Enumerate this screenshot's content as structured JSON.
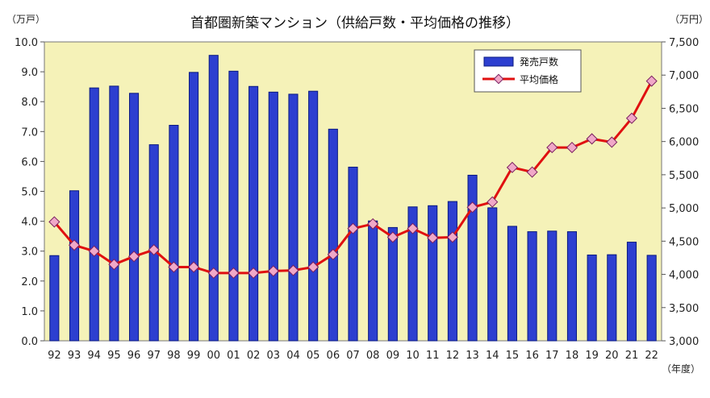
{
  "chart_data": {
    "type": "bar+line",
    "title": "首都圏新築マンション（供給戸数・平均価格の推移）",
    "left_unit": "（万戸）",
    "right_unit": "（万円）",
    "x_unit": "（年度）",
    "categories": [
      "92",
      "93",
      "94",
      "95",
      "96",
      "97",
      "98",
      "99",
      "00",
      "01",
      "02",
      "03",
      "04",
      "05",
      "06",
      "07",
      "08",
      "09",
      "10",
      "11",
      "12",
      "13",
      "14",
      "15",
      "16",
      "17",
      "18",
      "19",
      "20",
      "21",
      "22"
    ],
    "left_axis": {
      "min": 0,
      "max": 10,
      "step": 1,
      "tick_labels": [
        "0.0",
        "1.0",
        "2.0",
        "3.0",
        "4.0",
        "5.0",
        "6.0",
        "7.0",
        "8.0",
        "9.0",
        "10.0"
      ]
    },
    "right_axis": {
      "min": 3000,
      "max": 7500,
      "step": 500,
      "tick_labels": [
        "3,000",
        "3,500",
        "4,000",
        "4,500",
        "5,000",
        "5,500",
        "6,000",
        "6,500",
        "7,000",
        "7,500"
      ]
    },
    "series": [
      {
        "name": "発売戸数",
        "type": "bar",
        "axis": "left",
        "color": "#2d3fd0",
        "values": [
          2.85,
          5.02,
          8.46,
          8.52,
          8.28,
          6.56,
          7.21,
          8.98,
          9.55,
          9.02,
          8.51,
          8.32,
          8.25,
          8.35,
          7.08,
          5.81,
          4.01,
          3.79,
          4.48,
          4.52,
          4.66,
          5.54,
          4.45,
          3.83,
          3.65,
          3.67,
          3.65,
          2.87,
          2.88,
          3.3,
          2.86
        ]
      },
      {
        "name": "平均価格",
        "type": "line",
        "axis": "right",
        "color": "#e01010",
        "marker_color": "#f0a8c8",
        "values": [
          4790,
          4440,
          4350,
          4150,
          4270,
          4370,
          4110,
          4110,
          4020,
          4020,
          4020,
          4050,
          4060,
          4110,
          4300,
          4690,
          4760,
          4560,
          4690,
          4550,
          4560,
          5010,
          5090,
          5610,
          5540,
          5910,
          5910,
          6040,
          5990,
          6350,
          6910
        ]
      }
    ],
    "grid": false,
    "legend": "top-right inside plot"
  }
}
